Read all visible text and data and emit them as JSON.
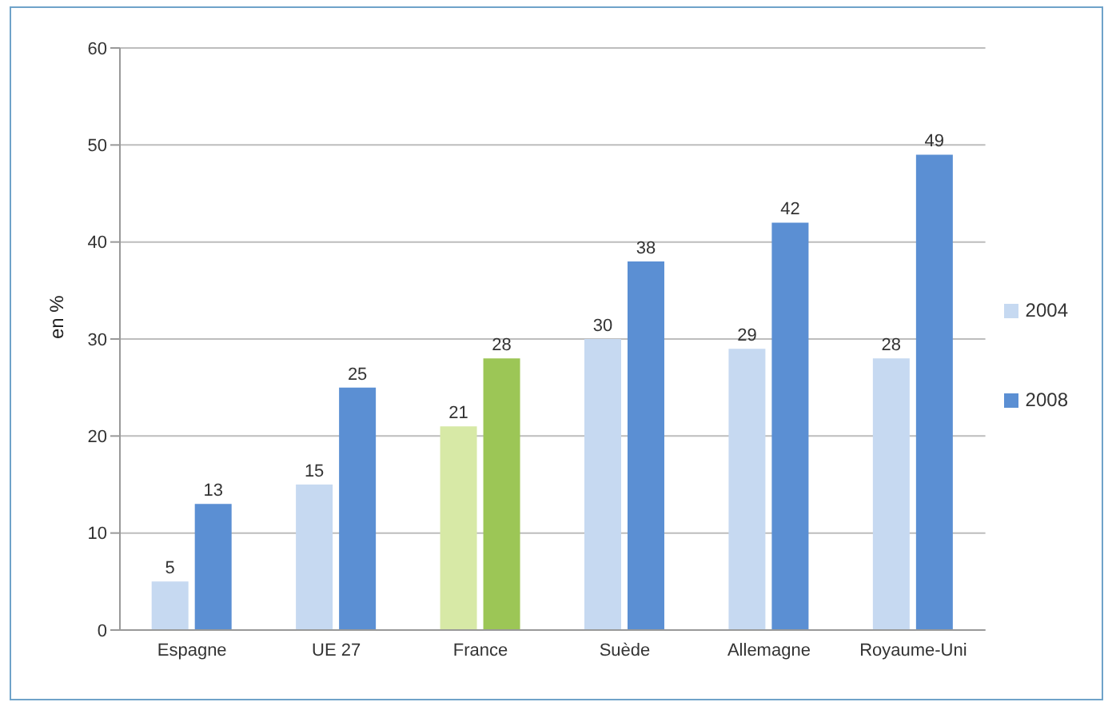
{
  "chart_data": {
    "type": "bar",
    "ylabel": "en %",
    "categories": [
      "Espagne",
      "UE 27",
      "France",
      "Suède",
      "Allemagne",
      "Royaume-Uni"
    ],
    "series": [
      {
        "name": "2004",
        "color": "#c6d9f1",
        "colors": [
          "#c6d9f1",
          "#c6d9f1",
          "#d7e9a6",
          "#c6d9f1",
          "#c6d9f1",
          "#c6d9f1"
        ],
        "values": [
          5,
          15,
          21,
          30,
          29,
          28
        ]
      },
      {
        "name": "2008",
        "color": "#5b8fd3",
        "colors": [
          "#5b8fd3",
          "#5b8fd3",
          "#9cc656",
          "#5b8fd3",
          "#5b8fd3",
          "#5b8fd3"
        ],
        "values": [
          13,
          25,
          28,
          38,
          42,
          49
        ]
      }
    ],
    "ylim": [
      0,
      60
    ],
    "yticks": [
      0,
      10,
      20,
      30,
      40,
      50,
      60
    ],
    "grid": "y",
    "legend": "right",
    "data_labels": true
  }
}
